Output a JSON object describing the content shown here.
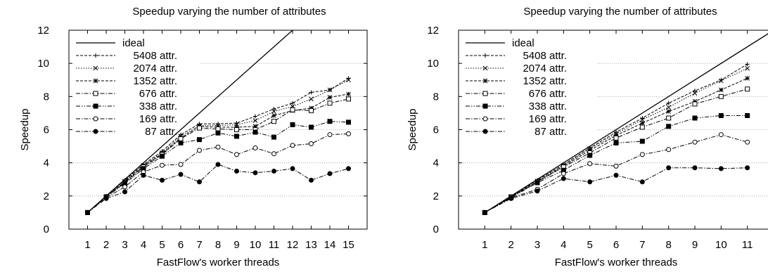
{
  "chart_data": [
    {
      "type": "line",
      "title": "Speedup varying the number of attributes",
      "xlabel": "FastFlow's worker threads",
      "ylabel": "Speedup",
      "xlim": [
        0,
        16
      ],
      "ylim": [
        0,
        12
      ],
      "xticks": [
        1,
        2,
        3,
        4,
        5,
        6,
        7,
        8,
        9,
        10,
        11,
        12,
        13,
        14,
        15
      ],
      "yticks": [
        0,
        2,
        4,
        6,
        8,
        10,
        12
      ],
      "grid": "horizontal-dotted",
      "legend_position": "top-left",
      "series": [
        {
          "name": "ideal",
          "style": "solid",
          "x": [
            1,
            16
          ],
          "y": [
            1,
            16
          ]
        },
        {
          "name": "5408 attr.",
          "style": "dashed",
          "marker": "plus",
          "x": [
            1,
            2,
            3,
            4,
            5,
            6,
            7,
            8,
            9,
            10,
            11,
            12,
            13,
            14,
            15
          ],
          "y": [
            1,
            2,
            2.95,
            3.9,
            4.7,
            5.7,
            6.35,
            6.35,
            6.4,
            6.8,
            7.25,
            7.6,
            8.25,
            8.4,
            9.1
          ]
        },
        {
          "name": "2074 attr.",
          "style": "dotted",
          "marker": "cross",
          "x": [
            1,
            2,
            3,
            4,
            5,
            6,
            7,
            8,
            9,
            10,
            11,
            12,
            13,
            14,
            15
          ],
          "y": [
            1,
            1.95,
            2.9,
            3.85,
            4.6,
            5.6,
            6.25,
            6.25,
            6.3,
            6.55,
            7.1,
            7.4,
            7.85,
            8.4,
            9.0
          ]
        },
        {
          "name": "1352 attr.",
          "style": "dashed",
          "marker": "asterisk",
          "x": [
            1,
            2,
            3,
            4,
            5,
            6,
            7,
            8,
            9,
            10,
            11,
            12,
            13,
            14,
            15
          ],
          "y": [
            1,
            1.95,
            2.85,
            3.8,
            4.55,
            5.5,
            6.2,
            6.15,
            6.15,
            6.2,
            6.85,
            7.15,
            7.3,
            7.95,
            8.15
          ]
        },
        {
          "name": "676 attr.",
          "style": "dashdot",
          "marker": "square-open",
          "x": [
            1,
            2,
            3,
            4,
            5,
            6,
            7,
            8,
            9,
            10,
            11,
            12,
            13,
            14,
            15
          ],
          "y": [
            1,
            1.95,
            2.8,
            3.75,
            4.5,
            5.45,
            6.1,
            6.05,
            6.0,
            6.0,
            6.5,
            7.2,
            7.15,
            7.6,
            7.85
          ]
        },
        {
          "name": "338 attr.",
          "style": "dashdotdot",
          "marker": "square-filled",
          "x": [
            1,
            2,
            3,
            4,
            5,
            6,
            7,
            8,
            9,
            10,
            11,
            12,
            13,
            14,
            15
          ],
          "y": [
            1,
            1.95,
            2.75,
            3.65,
            4.4,
            5.2,
            5.4,
            5.8,
            5.6,
            5.85,
            5.55,
            6.3,
            6.15,
            6.5,
            6.45
          ]
        },
        {
          "name": "169 attr.",
          "style": "dashdot",
          "marker": "circle-open",
          "x": [
            1,
            2,
            3,
            4,
            5,
            6,
            7,
            8,
            9,
            10,
            11,
            12,
            13,
            14,
            15
          ],
          "y": [
            1,
            1.9,
            2.55,
            3.45,
            3.85,
            3.9,
            4.75,
            4.95,
            4.5,
            4.9,
            4.55,
            5.05,
            5.15,
            5.7,
            5.75
          ]
        },
        {
          "name": "87 attr.",
          "style": "dashdot",
          "marker": "circle-filled",
          "x": [
            1,
            2,
            3,
            4,
            5,
            6,
            7,
            8,
            9,
            10,
            11,
            12,
            13,
            14,
            15
          ],
          "y": [
            1,
            1.85,
            2.25,
            3.25,
            2.95,
            3.3,
            2.85,
            3.9,
            3.5,
            3.4,
            3.5,
            3.65,
            2.95,
            3.35,
            3.65
          ]
        }
      ]
    },
    {
      "type": "line",
      "title": "Speedup varying the number of attributes",
      "xlabel": "FastFlow's worker threads",
      "ylabel": "Speedup",
      "xlim": [
        0,
        12
      ],
      "ylim": [
        0,
        12
      ],
      "xticks": [
        1,
        2,
        3,
        4,
        5,
        6,
        7,
        8,
        9,
        10,
        11
      ],
      "yticks": [
        0,
        2,
        4,
        6,
        8,
        10,
        12
      ],
      "grid": "horizontal-dotted",
      "legend_position": "top-left",
      "series": [
        {
          "name": "ideal",
          "style": "solid",
          "x": [
            1,
            12
          ],
          "y": [
            1,
            12
          ]
        },
        {
          "name": "5408 attr.",
          "style": "dashed",
          "marker": "plus",
          "x": [
            1,
            2,
            3,
            4,
            5,
            6,
            7,
            8,
            9,
            10,
            11
          ],
          "y": [
            1,
            1.95,
            2.95,
            3.9,
            4.9,
            5.85,
            6.7,
            7.6,
            8.35,
            9.0,
            9.95
          ]
        },
        {
          "name": "2074 attr.",
          "style": "dotted",
          "marker": "cross",
          "x": [
            1,
            2,
            3,
            4,
            5,
            6,
            7,
            8,
            9,
            10,
            11
          ],
          "y": [
            1,
            1.95,
            2.9,
            3.85,
            4.85,
            5.75,
            6.6,
            7.35,
            8.2,
            8.95,
            9.7
          ]
        },
        {
          "name": "1352 attr.",
          "style": "dashed",
          "marker": "asterisk",
          "x": [
            1,
            2,
            3,
            4,
            5,
            6,
            7,
            8,
            9,
            10,
            11
          ],
          "y": [
            1,
            1.95,
            2.85,
            3.8,
            4.75,
            5.65,
            6.4,
            7.1,
            7.7,
            8.4,
            9.1
          ]
        },
        {
          "name": "676 attr.",
          "style": "dashdot",
          "marker": "square-open",
          "x": [
            1,
            2,
            3,
            4,
            5,
            6,
            7,
            8,
            9,
            10,
            11
          ],
          "y": [
            1,
            1.95,
            2.85,
            3.75,
            4.6,
            5.5,
            6.15,
            6.7,
            7.55,
            8.0,
            8.45
          ]
        },
        {
          "name": "338 attr.",
          "style": "dashdotdot",
          "marker": "square-filled",
          "x": [
            1,
            2,
            3,
            4,
            5,
            6,
            7,
            8,
            9,
            10,
            11
          ],
          "y": [
            1,
            1.9,
            2.8,
            3.55,
            4.45,
            5.2,
            5.3,
            6.2,
            6.7,
            6.85,
            6.85
          ]
        },
        {
          "name": "169 attr.",
          "style": "dashdot",
          "marker": "circle-open",
          "x": [
            1,
            2,
            3,
            4,
            5,
            6,
            7,
            8,
            9,
            10,
            11
          ],
          "y": [
            1,
            1.9,
            2.4,
            3.35,
            3.95,
            3.8,
            4.5,
            4.8,
            5.25,
            5.7,
            5.25
          ]
        },
        {
          "name": "87 attr.",
          "style": "dashdot",
          "marker": "circle-filled",
          "x": [
            1,
            2,
            3,
            4,
            5,
            6,
            7,
            8,
            9,
            10,
            11
          ],
          "y": [
            1,
            1.85,
            2.3,
            3.05,
            2.85,
            3.25,
            2.85,
            3.7,
            3.7,
            3.65,
            3.7
          ]
        }
      ]
    }
  ]
}
